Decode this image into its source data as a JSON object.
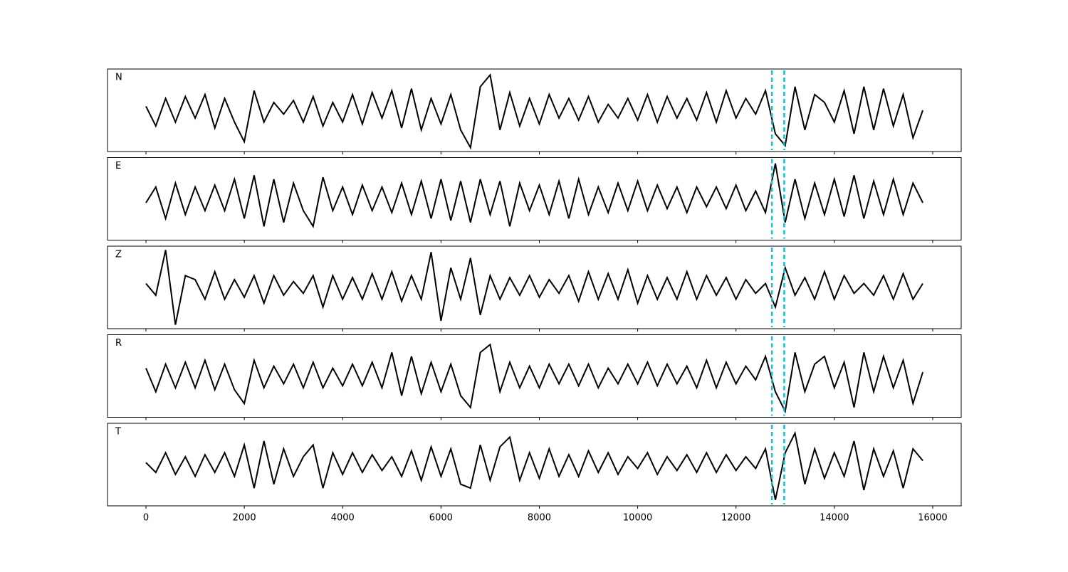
{
  "chart_data": {
    "type": "line",
    "x": [
      0,
      200,
      400,
      600,
      800,
      1000,
      1200,
      1400,
      1600,
      1800,
      2000,
      2200,
      2400,
      2600,
      2800,
      3000,
      3200,
      3400,
      3600,
      3800,
      4000,
      4200,
      4400,
      4600,
      4800,
      5000,
      5200,
      5400,
      5600,
      5800,
      6000,
      6200,
      6400,
      6600,
      6800,
      7000,
      7200,
      7400,
      7600,
      7800,
      8000,
      8200,
      8400,
      8600,
      8800,
      9000,
      9200,
      9400,
      9600,
      9800,
      10000,
      10200,
      10400,
      10600,
      10800,
      11000,
      11200,
      11400,
      11600,
      11800,
      12000,
      12200,
      12400,
      12600,
      12800,
      13000,
      13200,
      13400,
      13600,
      13800,
      14000,
      14200,
      14400,
      14600,
      14800,
      15000,
      15200,
      15400,
      15600,
      15800
    ],
    "series": [
      {
        "name": "N",
        "color": "#000000",
        "values": [
          0.1,
          -0.4,
          0.3,
          -0.3,
          0.35,
          -0.2,
          0.4,
          -0.45,
          0.3,
          -0.3,
          -0.8,
          0.5,
          -0.3,
          0.2,
          -0.1,
          0.25,
          -0.3,
          0.35,
          -0.4,
          0.2,
          -0.3,
          0.4,
          -0.35,
          0.45,
          -0.2,
          0.5,
          -0.45,
          0.55,
          -0.5,
          0.3,
          -0.35,
          0.4,
          -0.5,
          -0.95,
          0.6,
          0.9,
          -0.5,
          0.45,
          -0.4,
          0.3,
          -0.35,
          0.4,
          -0.2,
          0.3,
          -0.25,
          0.35,
          -0.3,
          0.15,
          -0.2,
          0.3,
          -0.25,
          0.4,
          -0.3,
          0.35,
          -0.2,
          0.3,
          -0.25,
          0.45,
          -0.3,
          0.5,
          -0.2,
          0.3,
          -0.1,
          0.5,
          -0.6,
          -0.9,
          0.6,
          -0.5,
          0.4,
          0.2,
          -0.3,
          0.5,
          -0.6,
          0.6,
          -0.5,
          0.55,
          -0.4,
          0.4,
          -0.7,
          0.0
        ]
      },
      {
        "name": "E",
        "color": "#000000",
        "values": [
          -0.1,
          0.3,
          -0.5,
          0.4,
          -0.4,
          0.3,
          -0.3,
          0.35,
          -0.3,
          0.5,
          -0.5,
          0.6,
          -0.7,
          0.5,
          -0.6,
          0.4,
          -0.3,
          -0.7,
          0.55,
          -0.3,
          0.3,
          -0.4,
          0.35,
          -0.3,
          0.3,
          -0.35,
          0.4,
          -0.4,
          0.45,
          -0.5,
          0.5,
          -0.55,
          0.45,
          -0.6,
          0.5,
          -0.4,
          0.45,
          -0.7,
          0.4,
          -0.3,
          0.35,
          -0.4,
          0.45,
          -0.5,
          0.5,
          -0.4,
          0.3,
          -0.35,
          0.4,
          -0.3,
          0.45,
          -0.3,
          0.35,
          -0.25,
          0.3,
          -0.35,
          0.3,
          -0.2,
          0.3,
          -0.25,
          0.35,
          -0.3,
          0.2,
          -0.35,
          0.9,
          -0.6,
          0.5,
          -0.5,
          0.4,
          -0.4,
          0.5,
          -0.45,
          0.6,
          -0.5,
          0.45,
          -0.4,
          0.5,
          -0.4,
          0.4,
          -0.1
        ]
      },
      {
        "name": "Z",
        "color": "#000000",
        "values": [
          0.1,
          -0.2,
          0.95,
          -0.95,
          0.3,
          0.2,
          -0.3,
          0.4,
          -0.3,
          0.2,
          -0.25,
          0.3,
          -0.4,
          0.3,
          -0.2,
          0.15,
          -0.15,
          0.3,
          -0.5,
          0.3,
          -0.3,
          0.25,
          -0.3,
          0.35,
          -0.3,
          0.4,
          -0.35,
          0.3,
          -0.3,
          0.9,
          -0.85,
          0.5,
          -0.3,
          0.75,
          -0.7,
          0.3,
          -0.3,
          0.25,
          -0.2,
          0.3,
          -0.25,
          0.2,
          -0.15,
          0.3,
          -0.35,
          0.4,
          -0.3,
          0.35,
          -0.3,
          0.45,
          -0.4,
          0.3,
          -0.3,
          0.25,
          -0.3,
          0.4,
          -0.3,
          0.3,
          -0.2,
          0.25,
          -0.3,
          0.2,
          -0.15,
          0.1,
          -0.5,
          0.5,
          -0.2,
          0.25,
          -0.3,
          0.4,
          -0.3,
          0.3,
          -0.15,
          0.1,
          -0.2,
          0.3,
          -0.3,
          0.35,
          -0.3,
          0.1
        ]
      },
      {
        "name": "R",
        "color": "#000000",
        "values": [
          0.2,
          -0.4,
          0.3,
          -0.3,
          0.35,
          -0.3,
          0.4,
          -0.35,
          0.3,
          -0.35,
          -0.7,
          0.4,
          -0.3,
          0.25,
          -0.2,
          0.3,
          -0.3,
          0.35,
          -0.3,
          0.2,
          -0.25,
          0.3,
          -0.25,
          0.35,
          -0.3,
          0.6,
          -0.5,
          0.5,
          -0.45,
          0.35,
          -0.4,
          0.3,
          -0.5,
          -0.8,
          0.6,
          0.8,
          -0.4,
          0.35,
          -0.3,
          0.25,
          -0.3,
          0.3,
          -0.2,
          0.3,
          -0.25,
          0.3,
          -0.3,
          0.2,
          -0.2,
          0.3,
          -0.2,
          0.35,
          -0.25,
          0.3,
          -0.2,
          0.25,
          -0.3,
          0.4,
          -0.3,
          0.35,
          -0.2,
          0.25,
          -0.1,
          0.5,
          -0.4,
          -0.9,
          0.6,
          -0.4,
          0.3,
          0.5,
          -0.3,
          0.35,
          -0.8,
          0.6,
          -0.4,
          0.5,
          -0.3,
          0.4,
          -0.7,
          0.1
        ]
      },
      {
        "name": "T",
        "color": "#000000",
        "values": [
          0.05,
          -0.2,
          0.3,
          -0.25,
          0.2,
          -0.3,
          0.25,
          -0.2,
          0.3,
          -0.3,
          0.5,
          -0.6,
          0.6,
          -0.5,
          0.4,
          -0.3,
          0.2,
          0.5,
          -0.6,
          0.3,
          -0.25,
          0.3,
          -0.2,
          0.25,
          -0.15,
          0.2,
          -0.3,
          0.35,
          -0.4,
          0.45,
          -0.3,
          0.4,
          -0.5,
          -0.6,
          0.5,
          -0.4,
          0.45,
          0.7,
          -0.4,
          0.3,
          -0.35,
          0.4,
          -0.3,
          0.25,
          -0.3,
          0.35,
          -0.2,
          0.3,
          -0.25,
          0.2,
          -0.1,
          0.3,
          -0.25,
          0.2,
          -0.15,
          0.25,
          -0.2,
          0.3,
          -0.2,
          0.25,
          -0.15,
          0.2,
          -0.1,
          0.4,
          -0.9,
          0.3,
          0.8,
          -0.5,
          0.4,
          -0.35,
          0.3,
          -0.3,
          0.6,
          -0.65,
          0.4,
          -0.3,
          0.35,
          -0.6,
          0.4,
          0.1
        ]
      }
    ],
    "vlines": [
      12730,
      12980
    ],
    "vline_color": "#17becf",
    "xlim": [
      -782,
      16580
    ],
    "ylim": [
      -1.05,
      1.05
    ],
    "xticks": [
      0,
      2000,
      4000,
      6000,
      8000,
      10000,
      12000,
      14000,
      16000
    ]
  }
}
